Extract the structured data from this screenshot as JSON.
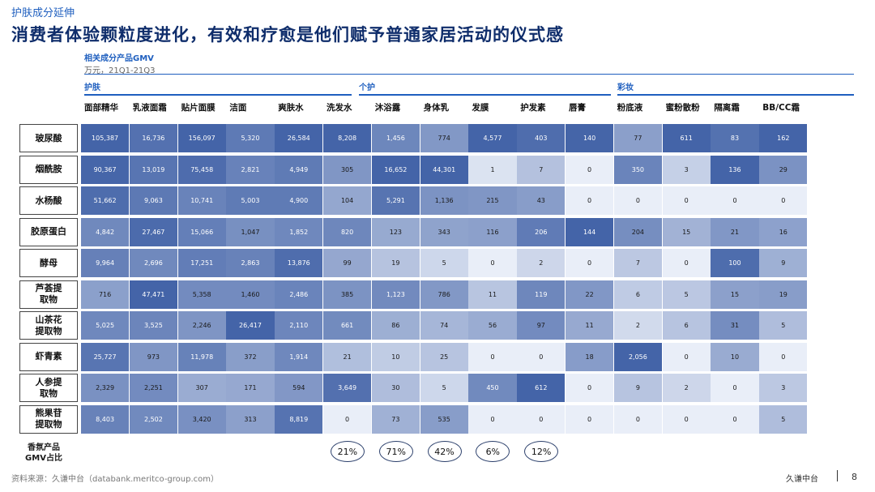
{
  "header": {
    "section_tag": "护肤成分延伸",
    "headline": "消费者体验颗粒度进化，有效和疗愈是他们赋予普通家居活动的仪式感"
  },
  "chart_data": {
    "type": "heatmap",
    "title": "相关成分产品GMV",
    "unit": "万元，21Q1-21Q3",
    "groups": [
      "护肤",
      "个护",
      "彩妆"
    ],
    "columns": [
      "面部精华",
      "乳液面霜",
      "贴片面膜",
      "洁面",
      "爽肤水",
      "洗发水",
      "沐浴露",
      "身体乳",
      "发膜",
      "护发素",
      "唇膏",
      "粉底液",
      "蜜粉散粉",
      "隔离霜",
      "BB/CC霜"
    ],
    "rows": [
      {
        "label": "玻尿酸",
        "values": [
          105387,
          16736,
          156097,
          5320,
          26584,
          8208,
          1456,
          774,
          4577,
          403,
          140,
          77,
          611,
          83,
          162
        ]
      },
      {
        "label": "烟酰胺",
        "values": [
          90367,
          13019,
          75458,
          2821,
          4949,
          305,
          16652,
          44301,
          1,
          7,
          0,
          350,
          3,
          136,
          29
        ]
      },
      {
        "label": "水杨酸",
        "values": [
          51662,
          9063,
          10741,
          5003,
          4900,
          104,
          5291,
          1136,
          215,
          43,
          0,
          0,
          0,
          0,
          0
        ]
      },
      {
        "label": "胶原蛋白",
        "values": [
          4842,
          27467,
          15066,
          1047,
          1852,
          820,
          123,
          343,
          116,
          206,
          144,
          204,
          15,
          21,
          16
        ]
      },
      {
        "label": "酵母",
        "values": [
          9964,
          2696,
          17251,
          2863,
          13876,
          99,
          19,
          5,
          0,
          2,
          0,
          7,
          0,
          100,
          9
        ]
      },
      {
        "label": "芦荟提取物",
        "values": [
          716,
          47471,
          5358,
          1460,
          2486,
          385,
          1123,
          786,
          11,
          119,
          22,
          6,
          5,
          15,
          19
        ]
      },
      {
        "label": "山茶花提取物",
        "values": [
          5025,
          3525,
          2246,
          26417,
          2110,
          661,
          86,
          74,
          56,
          97,
          11,
          2,
          6,
          31,
          5
        ]
      },
      {
        "label": "虾青素",
        "values": [
          25727,
          973,
          11978,
          372,
          1914,
          21,
          10,
          25,
          0,
          0,
          18,
          2056,
          0,
          10,
          0
        ]
      },
      {
        "label": "人参提取物",
        "values": [
          2329,
          2251,
          307,
          171,
          594,
          3649,
          30,
          5,
          450,
          612,
          0,
          9,
          2,
          0,
          3
        ]
      },
      {
        "label": "熊果苷提取物",
        "values": [
          8403,
          2502,
          3420,
          313,
          8819,
          0,
          73,
          535,
          0,
          0,
          0,
          0,
          0,
          0,
          5
        ]
      }
    ],
    "fragrance_share": {
      "label": "香氛产品GMV占比",
      "values": [
        "21%",
        "71%",
        "42%",
        "6%",
        "12%"
      ]
    }
  },
  "footer": {
    "source": "资料来源：久谦中台（databank.meritco-group.com）",
    "brand": "久谦中台",
    "page": "8"
  }
}
